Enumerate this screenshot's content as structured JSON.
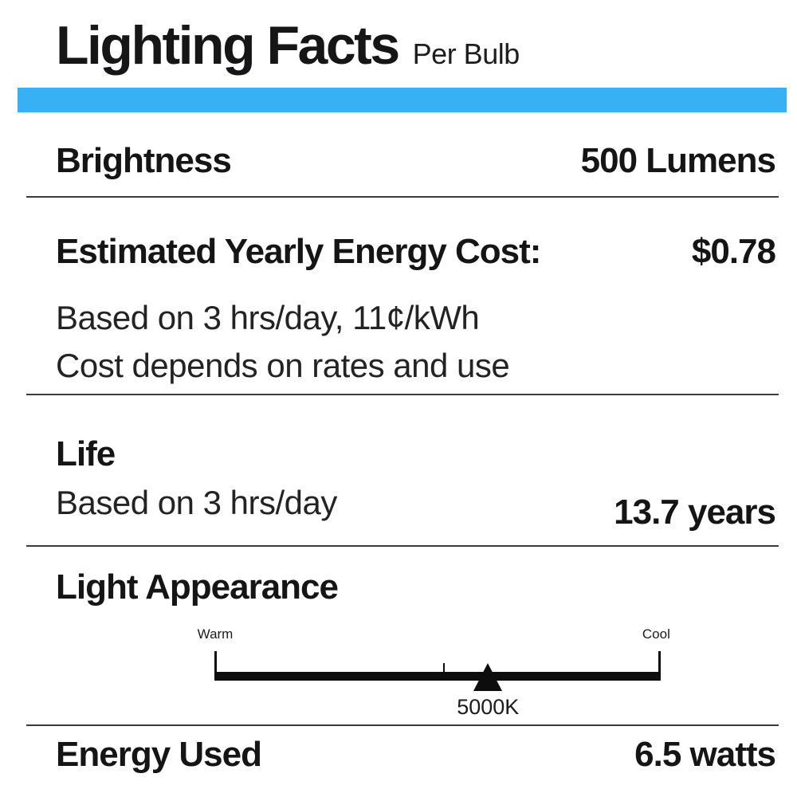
{
  "title": "Lighting Facts",
  "subtitle": "Per Bulb",
  "accent_color": "#38b0f4",
  "brightness": {
    "label": "Brightness",
    "value": "500 Lumens"
  },
  "energy_cost": {
    "label": "Estimated Yearly Energy Cost:",
    "value": "$0.78",
    "note1": "Based on 3 hrs/day, 11¢/kWh",
    "note2": "Cost depends on rates and use"
  },
  "life": {
    "label": "Life",
    "note": "Based on 3 hrs/day",
    "value": "13.7 years"
  },
  "light_appearance": {
    "label": "Light Appearance",
    "scale": {
      "left_label": "Warm",
      "right_label": "Cool",
      "marker_value": "5000K",
      "marker_icon": "triangle-up",
      "marker_position_pct": 61.3,
      "mid_tick_position_pct": 51.4,
      "bar_color": "#0d0d0d"
    }
  },
  "energy_used": {
    "label": "Energy Used",
    "value": "6.5 watts"
  }
}
